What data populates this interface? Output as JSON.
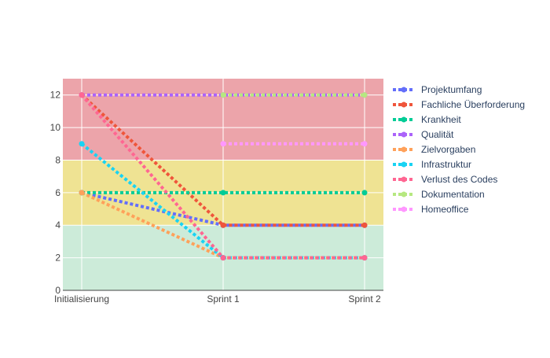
{
  "chart_data": {
    "type": "line",
    "title": "",
    "xlabel": "",
    "ylabel": "",
    "categories": [
      "Initialisierung",
      "Sprint 1",
      "Sprint 2"
    ],
    "ylim": [
      0,
      13
    ],
    "yticks": [
      0,
      2,
      4,
      6,
      8,
      10,
      12
    ],
    "grid": true,
    "legend_position": "right",
    "background_bands": [
      {
        "from": 0,
        "to": 4,
        "color": "#ccebd9"
      },
      {
        "from": 4,
        "to": 8,
        "color": "#efe393"
      },
      {
        "from": 8,
        "to": 13,
        "color": "#eca4aa"
      }
    ],
    "series": [
      {
        "name": "Projektumfang",
        "color": "#636efa",
        "values": [
          6,
          4,
          4
        ]
      },
      {
        "name": "Fachliche Überforderung",
        "color": "#ef553b",
        "values": [
          12,
          4,
          4
        ]
      },
      {
        "name": "Krankheit",
        "color": "#00cc96",
        "values": [
          6,
          6,
          6
        ]
      },
      {
        "name": "Qualität",
        "color": "#ab63fa",
        "values": [
          12,
          12,
          12
        ]
      },
      {
        "name": "Zielvorgaben",
        "color": "#ffa15a",
        "values": [
          6,
          2,
          2
        ]
      },
      {
        "name": "Infrastruktur",
        "color": "#19d3f3",
        "values": [
          9,
          2,
          2
        ]
      },
      {
        "name": "Verlust des Codes",
        "color": "#ff6692",
        "values": [
          12,
          2,
          2
        ]
      },
      {
        "name": "Dokumentation",
        "color": "#b6e880",
        "values": [
          null,
          12,
          12
        ]
      },
      {
        "name": "Homeoffice",
        "color": "#ff97ff",
        "values": [
          null,
          9,
          9
        ]
      }
    ]
  }
}
